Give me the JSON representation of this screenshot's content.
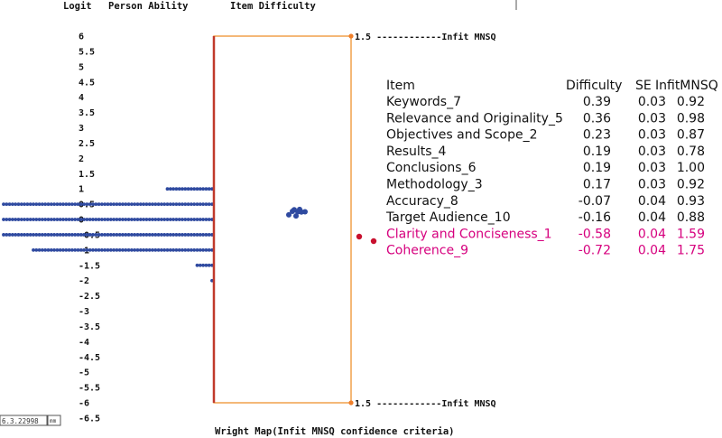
{
  "headers": {
    "logit": "Logit",
    "person_ability": "Person Ability",
    "item_difficulty": "Item Difficulty"
  },
  "infit_label_top": "1.5 ------------Infit MNSQ",
  "infit_label_bottom": "1.5 ------------Infit MNSQ",
  "caption": "Wright Map(Infit MNSQ confidence criteria)",
  "corner_readout": "6.3.22998",
  "corner_icon_text": "mm",
  "colors": {
    "person_dots": "#2f4aa0",
    "item_dots": "#2f4aa0",
    "misfit": "#c8102e",
    "axis_line": "#c0392b",
    "box": "#f0a04b",
    "misfit_text": "#d6007e"
  },
  "chart_data": {
    "type": "scatter",
    "ylim": [
      -6.5,
      6
    ],
    "y_ticks": [
      "6",
      "5.5",
      "5",
      "4.5",
      "4",
      "3.5",
      "3",
      "2.5",
      "2",
      "1.5",
      "1",
      "0.5",
      "0",
      "-0.5",
      "-1",
      "-1.5",
      "-2",
      "-2.5",
      "-3",
      "-3.5",
      "-4",
      "-4.5",
      "-5",
      "-5.5",
      "-6",
      "-6.5"
    ],
    "person_distribution": [
      {
        "logit": 1.0,
        "relative_count": 0.22
      },
      {
        "logit": 0.5,
        "relative_count": 1.0
      },
      {
        "logit": 0.0,
        "relative_count": 1.0
      },
      {
        "logit": -0.5,
        "relative_count": 1.0
      },
      {
        "logit": -1.0,
        "relative_count": 0.86
      },
      {
        "logit": -1.5,
        "relative_count": 0.09
      },
      {
        "logit": -2.0,
        "relative_count": 0.02
      }
    ],
    "infit_criterion": 1.5
  },
  "table": {
    "columns": [
      "Item",
      "Difficulty",
      "SE",
      "InfitMNSQ"
    ],
    "rows": [
      {
        "item": "Keywords_7",
        "difficulty": "0.39",
        "se": "0.03",
        "infit": "0.92",
        "misfit": false
      },
      {
        "item": "Relevance and Originality_5",
        "difficulty": "0.36",
        "se": "0.03",
        "infit": "0.98",
        "misfit": false
      },
      {
        "item": "Objectives and Scope_2",
        "difficulty": "0.23",
        "se": "0.03",
        "infit": "0.87",
        "misfit": false
      },
      {
        "item": "Results_4",
        "difficulty": "0.19",
        "se": "0.03",
        "infit": "0.78",
        "misfit": false
      },
      {
        "item": "Conclusions_6",
        "difficulty": "0.19",
        "se": "0.03",
        "infit": "1.00",
        "misfit": false
      },
      {
        "item": "Methodology_3",
        "difficulty": "0.17",
        "se": "0.03",
        "infit": "0.92",
        "misfit": false
      },
      {
        "item": "Accuracy_8",
        "difficulty": "-0.07",
        "se": "0.04",
        "infit": "0.93",
        "misfit": false
      },
      {
        "item": "Target Audience_10",
        "difficulty": "-0.16",
        "se": "0.04",
        "infit": "0.88",
        "misfit": false
      },
      {
        "item": "Clarity and Conciseness_1",
        "difficulty": "-0.58",
        "se": "0.04",
        "infit": "1.59",
        "misfit": true
      },
      {
        "item": "Coherence_9",
        "difficulty": "-0.72",
        "se": "0.04",
        "infit": "1.75",
        "misfit": true
      }
    ]
  }
}
